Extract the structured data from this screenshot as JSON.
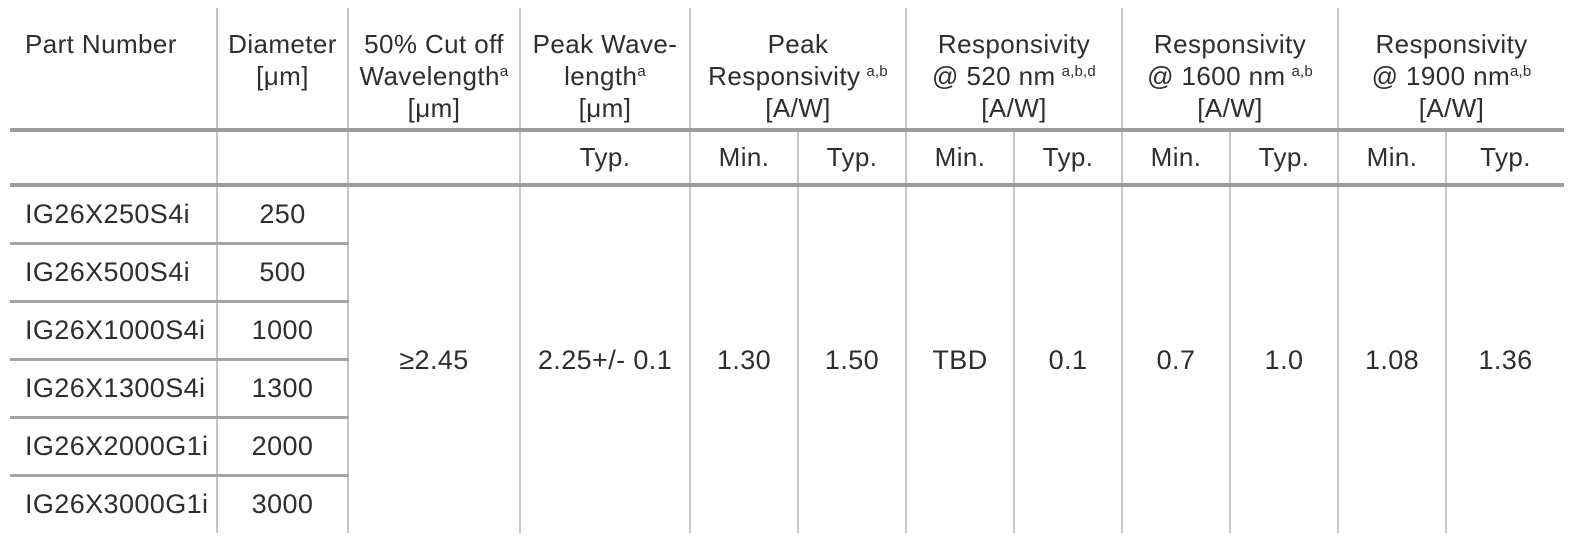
{
  "colors": {
    "background": "#ffffff",
    "text": "#2e2e2e",
    "heavy_rule": "#9c9c9c",
    "row_rule": "#a5a5a5",
    "column_rule": "#c6c6c6"
  },
  "header": {
    "part_number": "Part Number",
    "diameter": {
      "line1": "Diameter",
      "line2": "[μm]"
    },
    "cutoff": {
      "line1": "50% Cut off",
      "line2": "Wavelength",
      "sup": "a",
      "line3": "[μm]"
    },
    "peak_wavelength": {
      "line1": "Peak Wave-",
      "line2": "length",
      "sup": "a",
      "line3": "[μm]"
    },
    "peak_responsivity": {
      "line1": "Peak",
      "line2": "Responsivity",
      "sup": "a,b",
      "line3": "[A/W]"
    },
    "resp_520": {
      "line1": "Responsivity",
      "line2": "@ 520 nm",
      "sup": "a,b,d",
      "line3": "[A/W]"
    },
    "resp_1600": {
      "line1": "Responsivity",
      "line2": "@ 1600 nm",
      "sup": "a,b",
      "line3": "[A/W]"
    },
    "resp_1900": {
      "line1": "Responsivity",
      "line2": "@ 1900 nm",
      "sup": "a,b",
      "line3": "[A/W]"
    }
  },
  "subheader": {
    "min": "Min.",
    "typ": "Typ."
  },
  "rows": [
    {
      "part": "IG26X250S4i",
      "diameter": "250"
    },
    {
      "part": "IG26X500S4i",
      "diameter": "500"
    },
    {
      "part": "IG26X1000S4i",
      "diameter": "1000"
    },
    {
      "part": "IG26X1300S4i",
      "diameter": "1300"
    },
    {
      "part": "IG26X2000G1i",
      "diameter": "2000"
    },
    {
      "part": "IG26X3000G1i",
      "diameter": "3000"
    }
  ],
  "values": {
    "cutoff": "≥2.45",
    "peak_wavelength": "2.25+/- 0.1",
    "peak_responsivity_min": "1.30",
    "peak_responsivity_typ": "1.50",
    "resp_520_min": "TBD",
    "resp_520_typ": "0.1",
    "resp_1600_min": "0.7",
    "resp_1600_typ": "1.0",
    "resp_1900_min": "1.08",
    "resp_1900_typ": "1.36"
  }
}
